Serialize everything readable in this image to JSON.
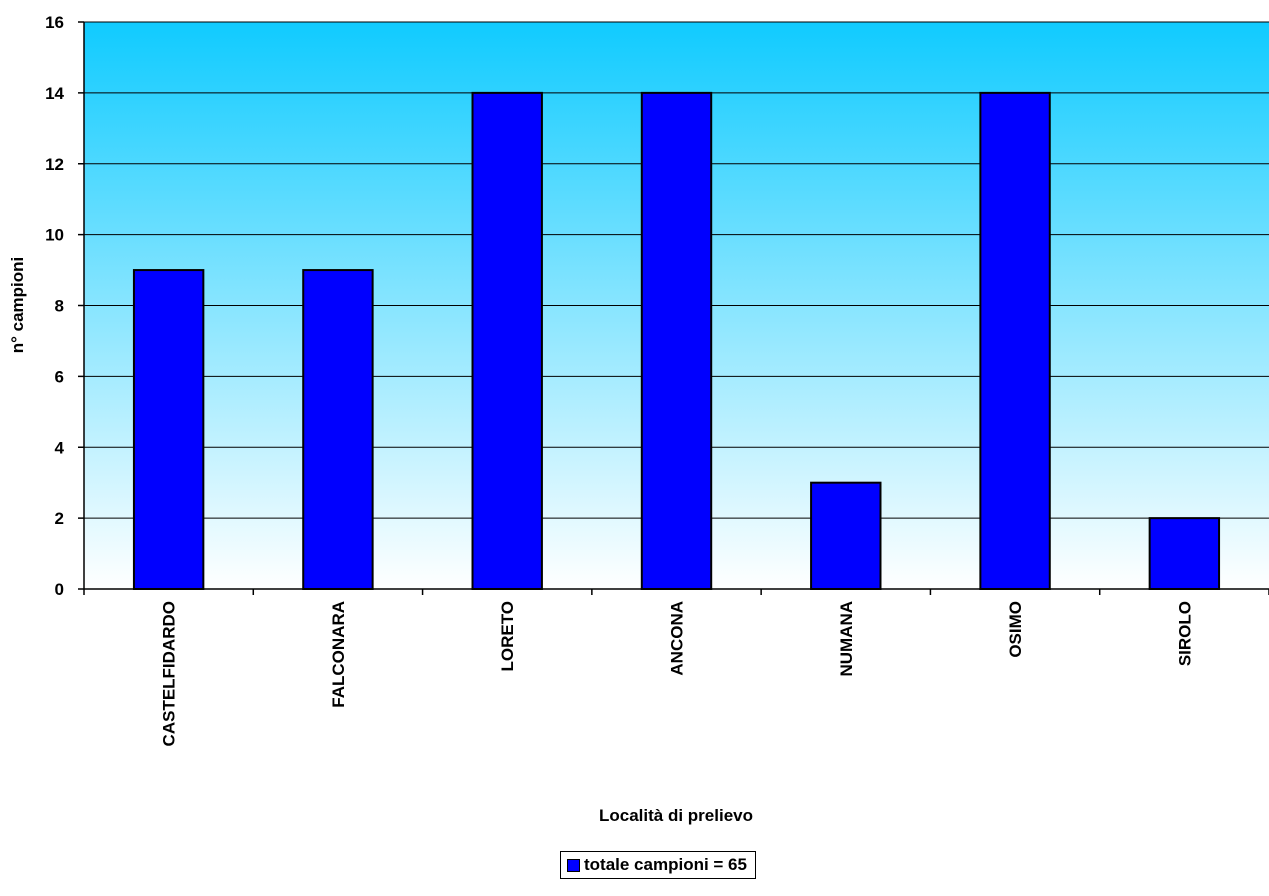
{
  "chart_data": {
    "type": "bar",
    "categories": [
      "CASTELFIDARDO",
      "FALCONARA",
      "LORETO",
      "ANCONA",
      "NUMANA",
      "OSIMO",
      "SIROLO"
    ],
    "series": [
      {
        "name": "totale campioni = 65",
        "values": [
          9,
          9,
          14,
          14,
          3,
          14,
          2
        ]
      }
    ],
    "xlabel": "Località di prelievo",
    "ylabel": "n° campioni",
    "ylim": [
      0,
      16
    ],
    "yticks": [
      0,
      2,
      4,
      6,
      8,
      10,
      12,
      14,
      16
    ],
    "grid": true,
    "legend_position": "bottom",
    "colors": {
      "bar": "#0000ff",
      "bar_border": "#000000",
      "plot_top": "#10cbff",
      "plot_bottom": "#ffffff",
      "gridline": "#000000"
    }
  }
}
